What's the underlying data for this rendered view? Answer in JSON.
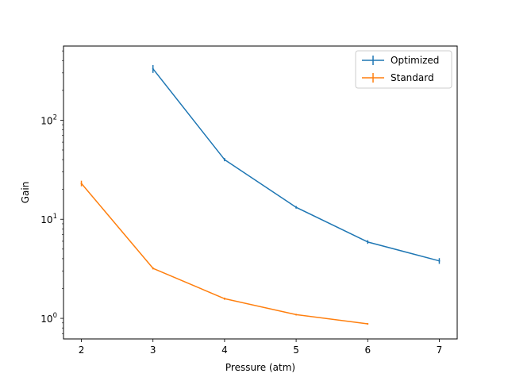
{
  "chart_data": {
    "type": "line",
    "title": "",
    "xlabel": "Pressure (atm)",
    "ylabel": "Gain",
    "xlim": [
      1.75,
      7.25
    ],
    "ylim": [
      0.62,
      560
    ],
    "yscale": "log",
    "grid": false,
    "legend_position": "top-right",
    "x_ticks": [
      {
        "value": 2,
        "label": "2"
      },
      {
        "value": 3,
        "label": "3"
      },
      {
        "value": 4,
        "label": "4"
      },
      {
        "value": 5,
        "label": "5"
      },
      {
        "value": 6,
        "label": "6"
      },
      {
        "value": 7,
        "label": "7"
      }
    ],
    "y_ticks": [
      {
        "value": 1,
        "base": "10",
        "exp": "0"
      },
      {
        "value": 10,
        "base": "10",
        "exp": "1"
      },
      {
        "value": 100,
        "base": "10",
        "exp": "2"
      }
    ],
    "series": [
      {
        "name": "Optimized",
        "color": "#1f77b4",
        "x": [
          3,
          4,
          5,
          6,
          7
        ],
        "y": [
          330,
          40,
          13.2,
          5.9,
          3.8
        ],
        "yerr": [
          30,
          1.5,
          0.4,
          0.25,
          0.25
        ]
      },
      {
        "name": "Standard",
        "color": "#ff7f0e",
        "x": [
          2,
          3,
          4,
          5,
          6
        ],
        "y": [
          23,
          3.2,
          1.58,
          1.09,
          0.88
        ],
        "yerr": [
          1.5,
          0.08,
          0.04,
          0.02,
          0.015
        ]
      }
    ]
  }
}
